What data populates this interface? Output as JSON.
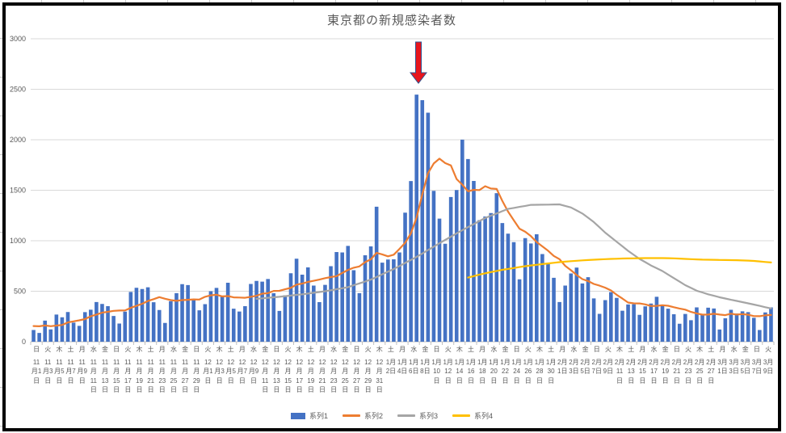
{
  "colors": {
    "text": "#595959",
    "grid": "#D9D9D9",
    "axis": "#BFBFBF",
    "chart_border": "#000000",
    "sheet_line": "#C8C8C8"
  },
  "y_axis": {
    "max": 3000,
    "ticks": [
      0,
      500,
      1000,
      1500,
      2000,
      2500,
      3000
    ]
  },
  "chart_data": {
    "type": "combo-bar-line",
    "title": "東京都の新規感染者数",
    "x_unit": "day",
    "x_start": "2020-11-01",
    "x_end": "2021-03-10",
    "legend_position": "bottom",
    "grid": "horizontal",
    "annotation": {
      "shape": "down-arrow",
      "points_at": "2021-01-07",
      "fill": "#E8151D",
      "stroke": "#2F528F"
    },
    "x_tick_labels": [
      [
        "日",
        "11",
        "月1",
        "日"
      ],
      [
        "火",
        "11",
        "月3",
        "日"
      ],
      [
        "木",
        "11",
        "月5",
        "日"
      ],
      [
        "土",
        "11",
        "月7",
        "日"
      ],
      [
        "月",
        "11",
        "月9",
        "日"
      ],
      [
        "水",
        "11",
        "月",
        "11",
        "日"
      ],
      [
        "金",
        "11",
        "月",
        "13",
        "日"
      ],
      [
        "日",
        "11",
        "月",
        "15",
        "日"
      ],
      [
        "火",
        "11",
        "月",
        "17",
        "日"
      ],
      [
        "木",
        "11",
        "月",
        "19",
        "日"
      ],
      [
        "土",
        "11",
        "月",
        "21",
        "日"
      ],
      [
        "月",
        "11",
        "月",
        "23",
        "日"
      ],
      [
        "水",
        "11",
        "月",
        "25",
        "日"
      ],
      [
        "金",
        "11",
        "月",
        "27",
        "日"
      ],
      [
        "日",
        "11",
        "月",
        "29",
        "日"
      ],
      [
        "火",
        "12",
        "月1",
        "日"
      ],
      [
        "木",
        "12",
        "月3",
        "日"
      ],
      [
        "土",
        "12",
        "月5",
        "日"
      ],
      [
        "月",
        "12",
        "月7",
        "日"
      ],
      [
        "水",
        "12",
        "月9",
        "日"
      ],
      [
        "金",
        "12",
        "月",
        "11",
        "日"
      ],
      [
        "日",
        "12",
        "月",
        "13",
        "日"
      ],
      [
        "火",
        "12",
        "月",
        "15",
        "日"
      ],
      [
        "木",
        "12",
        "月",
        "17",
        "日"
      ],
      [
        "土",
        "12",
        "月",
        "19",
        "日"
      ],
      [
        "月",
        "12",
        "月",
        "21",
        "日"
      ],
      [
        "水",
        "12",
        "月",
        "23",
        "日"
      ],
      [
        "金",
        "12",
        "月",
        "25",
        "日"
      ],
      [
        "日",
        "12",
        "月",
        "27",
        "日"
      ],
      [
        "火",
        "12",
        "月",
        "29",
        "日"
      ],
      [
        "木",
        "12",
        "月",
        "31",
        "日"
      ],
      [
        "土",
        "1月",
        "2日"
      ],
      [
        "月",
        "1月",
        "4日"
      ],
      [
        "水",
        "1月",
        "6日"
      ],
      [
        "金",
        "1月",
        "8日"
      ],
      [
        "日",
        "1月",
        "10",
        "日"
      ],
      [
        "火",
        "1月",
        "12",
        "日"
      ],
      [
        "木",
        "1月",
        "14",
        "日"
      ],
      [
        "土",
        "1月",
        "16",
        "日"
      ],
      [
        "月",
        "1月",
        "18",
        "日"
      ],
      [
        "水",
        "1月",
        "20",
        "日"
      ],
      [
        "金",
        "1月",
        "22",
        "日"
      ],
      [
        "日",
        "1月",
        "24",
        "日"
      ],
      [
        "火",
        "1月",
        "26",
        "日"
      ],
      [
        "木",
        "1月",
        "28",
        "日"
      ],
      [
        "土",
        "1月",
        "30",
        "日"
      ],
      [
        "月",
        "2月",
        "1日"
      ],
      [
        "水",
        "2月",
        "3日"
      ],
      [
        "金",
        "2月",
        "5日"
      ],
      [
        "日",
        "2月",
        "7日"
      ],
      [
        "火",
        "2月",
        "9日"
      ],
      [
        "木",
        "2月",
        "11",
        "日"
      ],
      [
        "土",
        "2月",
        "13",
        "日"
      ],
      [
        "月",
        "2月",
        "15",
        "日"
      ],
      [
        "水",
        "2月",
        "17",
        "日"
      ],
      [
        "金",
        "2月",
        "19",
        "日"
      ],
      [
        "日",
        "2月",
        "21",
        "日"
      ],
      [
        "火",
        "2月",
        "23",
        "日"
      ],
      [
        "木",
        "2月",
        "25",
        "日"
      ],
      [
        "土",
        "2月",
        "27",
        "日"
      ],
      [
        "月",
        "3月",
        "1日"
      ],
      [
        "水",
        "3月",
        "3日"
      ],
      [
        "金",
        "3月",
        "5日"
      ],
      [
        "日",
        "3月",
        "7日"
      ],
      [
        "火",
        "3月",
        "9日"
      ]
    ],
    "series": [
      {
        "name": "系列1",
        "kind": "bar",
        "color": "#4472C4",
        "start": 0,
        "values": [
          116,
          87,
          209,
          122,
          269,
          242,
          294,
          189,
          157,
          293,
          317,
          393,
          374,
          352,
          255,
          180,
          298,
          493,
          534,
          522,
          539,
          391,
          314,
          186,
          401,
          481,
          570,
          561,
          418,
          311,
          372,
          500,
          533,
          449,
          584,
          327,
          299,
          352,
          572,
          602,
          595,
          621,
          480,
          305,
          460,
          678,
          822,
          664,
          736,
          556,
          392,
          563,
          748,
          888,
          884,
          949,
          708,
          481,
          856,
          944,
          1337,
          783,
          814,
          816,
          884,
          1278,
          1591,
          2447,
          2392,
          2268,
          1494,
          1219,
          970,
          1433,
          1502,
          2001,
          1809,
          1592,
          1204,
          1240,
          1274,
          1471,
          1175,
          1070,
          986,
          618,
          1026,
          973,
          1064,
          868,
          769,
          633,
          393,
          556,
          676,
          734,
          577,
          639,
          429,
          276,
          412,
          491,
          434,
          307,
          369,
          371,
          266,
          350,
          378,
          445,
          353,
          327,
          272,
          178,
          275,
          213,
          340,
          270,
          337,
          329,
          121,
          232,
          316,
          279,
          301,
          293,
          237,
          116,
          290,
          340
        ]
      },
      {
        "name": "系列2",
        "kind": "line",
        "color": "#ED7D31",
        "start": 0,
        "values": [
          155,
          153,
          161,
          154,
          160,
          166,
          191,
          202,
          212,
          224,
          252,
          269,
          288,
          296,
          306,
          309,
          310,
          335,
          355,
          376,
          403,
          422,
          442,
          426,
          412,
          405,
          412,
          415,
          419,
          418,
          445,
          459,
          466,
          449,
          452,
          439,
          438,
          435,
          445,
          455,
          476,
          481,
          503,
          504,
          519,
          534,
          566,
          576,
          592,
          603,
          615,
          630,
          640,
          650,
          681,
          711,
          733,
          746,
          788,
          816,
          880,
          865,
          846,
          862,
          919,
          979,
          1072,
          1230,
          1460,
          1668,
          1765,
          1813,
          1769,
          1746,
          1611,
          1555,
          1490,
          1504,
          1502,
          1540,
          1517,
          1513,
          1395,
          1289,
          1203,
          1119,
          1089,
          1046,
          987,
          944,
          901,
          850,
          818,
          751,
          708,
          661,
          620,
          601,
          572,
          555,
          535,
          508,
          465,
          427,
          388,
          380,
          379,
          370,
          354,
          355,
          362,
          356,
          342,
          329,
          318,
          295,
          280,
          268,
          269,
          277,
          269,
          263,
          278,
          269,
          274,
          267,
          254,
          253,
          262,
          265
        ]
      },
      {
        "name": "系列3",
        "kind": "line",
        "color": "#A5A5A5",
        "start": 39,
        "values": [
          425,
          430,
          435,
          440,
          445,
          451,
          457,
          464,
          470,
          477,
          485,
          492,
          500,
          510,
          520,
          530,
          540,
          559,
          578,
          596,
          615,
          641,
          668,
          694,
          720,
          750,
          780,
          810,
          840,
          874,
          908,
          941,
          975,
          1008,
          1040,
          1073,
          1105,
          1135,
          1165,
          1195,
          1225,
          1248,
          1270,
          1293,
          1315,
          1325,
          1335,
          1345,
          1355,
          1356,
          1357,
          1358,
          1359,
          1360,
          1345,
          1330,
          1300,
          1270,
          1228,
          1185,
          1133,
          1080,
          1035,
          990,
          945,
          900,
          860,
          820,
          788,
          755,
          728,
          700,
          665,
          630,
          595,
          560,
          533,
          505,
          488,
          470,
          455,
          440,
          428,
          415,
          404,
          392,
          380,
          368,
          355,
          342,
          330
        ]
      },
      {
        "name": "系列4",
        "kind": "line",
        "color": "#FFC000",
        "start": 76,
        "values": [
          635,
          650,
          665,
          678,
          690,
          701,
          712,
          721,
          730,
          739,
          748,
          755,
          762,
          769,
          775,
          782,
          788,
          793,
          798,
          802,
          806,
          809,
          812,
          815,
          818,
          820,
          822,
          824,
          825,
          826,
          827,
          828,
          828,
          828,
          828,
          827,
          826,
          823,
          820,
          818,
          815,
          813,
          812,
          811,
          810,
          809,
          808,
          807,
          805,
          803,
          800,
          795,
          790,
          785
        ]
      }
    ]
  }
}
